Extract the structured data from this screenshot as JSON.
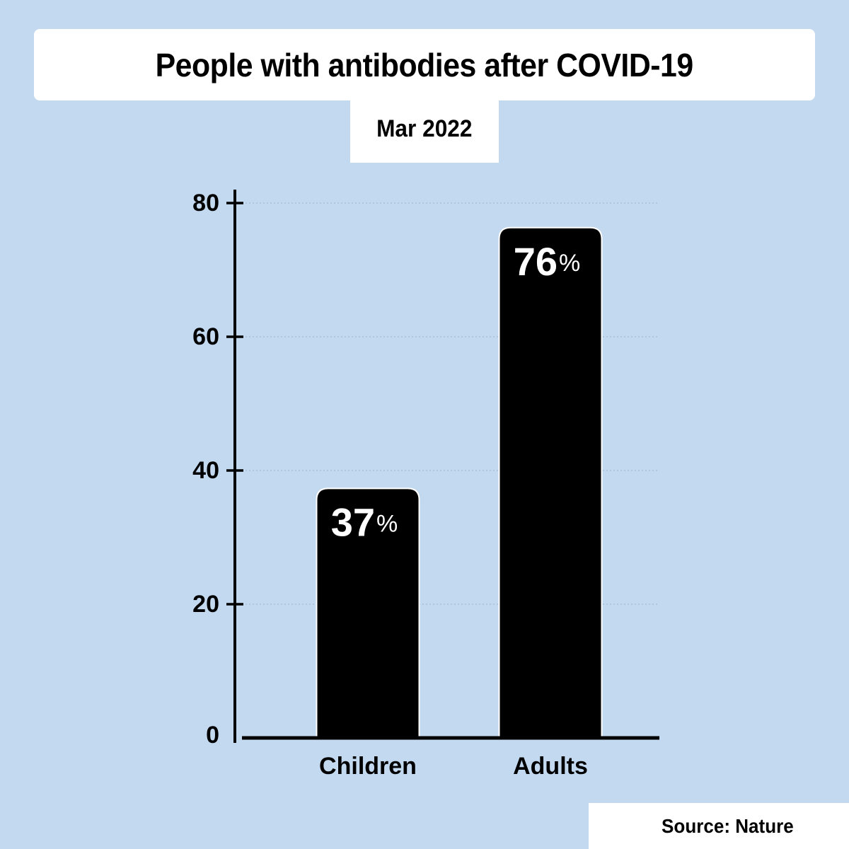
{
  "colors": {
    "background": "#c3d9f0",
    "bar": "#000000",
    "bar_label": "#ffffff",
    "axis": "#000000",
    "grid": "#9bb3cc"
  },
  "source": "Source: Nature",
  "chart_data": {
    "type": "bar",
    "title": "People with antibodies after COVID-19",
    "subtitle": "Mar 2022",
    "categories": [
      "Children",
      "Adults"
    ],
    "values": [
      37,
      76
    ],
    "value_labels": [
      {
        "number": "37",
        "unit": "%"
      },
      {
        "number": "76",
        "unit": "%"
      }
    ],
    "yticks": [
      0,
      20,
      40,
      60,
      80
    ],
    "ylim": [
      0,
      80
    ],
    "xlabel": "",
    "ylabel": "",
    "grid": true,
    "legend": "none"
  }
}
